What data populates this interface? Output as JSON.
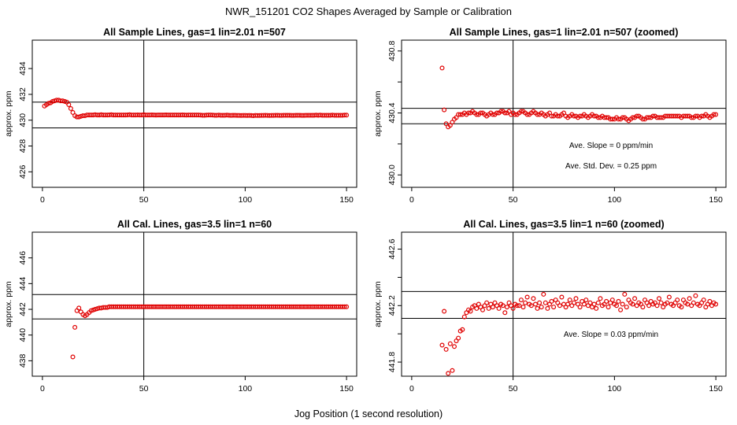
{
  "figure": {
    "title": "NWR_151201  CO2 Shapes Averaged by Sample or Calibration",
    "xlabel": "Jog Position (1 second resolution)"
  },
  "chart_data": [
    {
      "type": "scatter",
      "title": "All Sample Lines, gas=1 lin=2.01 n=507",
      "ylabel": "approx. ppm",
      "xlim": [
        -5,
        155
      ],
      "ylim": [
        424.8,
        436.2
      ],
      "xticks": [
        0,
        50,
        100,
        150
      ],
      "yticks": [
        426,
        428,
        430,
        432,
        434
      ],
      "vline": 50,
      "hlines": [
        431.4,
        429.4
      ],
      "annotations": [],
      "color": "#e00000",
      "x": [
        1,
        2,
        3,
        4,
        5,
        6,
        7,
        8,
        9,
        10,
        11,
        12,
        13,
        14,
        15,
        16,
        17,
        18,
        19,
        20,
        21,
        22,
        23,
        24,
        25,
        26,
        27,
        28,
        29,
        30,
        31,
        32,
        33,
        34,
        35,
        36,
        37,
        38,
        39,
        40,
        41,
        42,
        43,
        44,
        45,
        46,
        47,
        48,
        49,
        50,
        51,
        52,
        53,
        54,
        55,
        56,
        57,
        58,
        59,
        60,
        61,
        62,
        63,
        64,
        65,
        66,
        67,
        68,
        69,
        70,
        71,
        72,
        73,
        74,
        75,
        76,
        77,
        78,
        79,
        80,
        81,
        82,
        83,
        84,
        85,
        86,
        87,
        88,
        89,
        90,
        91,
        92,
        93,
        94,
        95,
        96,
        97,
        98,
        99,
        100,
        101,
        102,
        103,
        104,
        105,
        106,
        107,
        108,
        109,
        110,
        111,
        112,
        113,
        114,
        115,
        116,
        117,
        118,
        119,
        120,
        121,
        122,
        123,
        124,
        125,
        126,
        127,
        128,
        129,
        130,
        131,
        132,
        133,
        134,
        135,
        136,
        137,
        138,
        139,
        140,
        141,
        142,
        143,
        144,
        145,
        146,
        147,
        148,
        149,
        150
      ],
      "y": [
        431.1,
        431.2,
        431.3,
        431.35,
        431.45,
        431.5,
        431.55,
        431.55,
        431.5,
        431.5,
        431.45,
        431.4,
        431.2,
        430.9,
        430.6,
        430.35,
        430.25,
        430.25,
        430.3,
        430.35,
        430.35,
        430.4,
        430.4,
        430.4,
        430.4,
        430.42,
        430.4,
        430.4,
        430.42,
        430.4,
        430.4,
        430.4,
        430.41,
        430.42,
        430.4,
        430.4,
        430.4,
        430.4,
        430.4,
        430.4,
        430.4,
        430.41,
        430.42,
        430.4,
        430.4,
        430.4,
        430.41,
        430.4,
        430.4,
        430.42,
        430.4,
        430.4,
        430.4,
        430.41,
        430.4,
        430.39,
        430.4,
        430.4,
        430.4,
        430.4,
        430.41,
        430.4,
        430.4,
        430.4,
        430.4,
        430.4,
        430.4,
        430.4,
        430.41,
        430.4,
        430.39,
        430.4,
        430.4,
        430.4,
        430.4,
        430.4,
        430.4,
        430.39,
        430.38,
        430.38,
        430.39,
        430.4,
        430.4,
        430.39,
        430.38,
        430.38,
        430.39,
        430.38,
        430.38,
        430.38,
        430.39,
        430.38,
        430.37,
        430.38,
        430.38,
        430.37,
        430.37,
        430.36,
        430.37,
        430.37,
        430.36,
        430.37,
        430.36,
        430.35,
        430.37,
        430.36,
        430.36,
        430.37,
        430.37,
        430.38,
        430.37,
        430.36,
        430.37,
        430.37,
        430.38,
        430.38,
        430.37,
        430.37,
        430.38,
        430.38,
        430.38,
        430.38,
        430.37,
        430.37,
        430.38,
        430.38,
        430.38,
        430.37,
        430.37,
        430.38,
        430.38,
        430.38,
        430.38,
        430.38,
        430.39,
        430.38,
        430.39,
        430.38,
        430.38,
        430.38,
        430.38,
        430.38,
        430.39,
        430.38,
        430.38,
        430.38,
        430.38,
        430.38,
        430.39,
        430.39
      ]
    },
    {
      "type": "scatter",
      "title": "All Sample Lines, gas=1 lin=2.01 n=507 (zoomed)",
      "ylabel": "approx. ppm",
      "xlim": [
        -5,
        155
      ],
      "ylim": [
        429.92,
        430.87
      ],
      "xticks": [
        0,
        50,
        100,
        150
      ],
      "yticks": [
        430.0,
        430.4,
        430.8
      ],
      "ytick_labels": [
        "430.0",
        "430.4",
        "430.8"
      ],
      "yticks_unlabeled": [
        430.2,
        430.6
      ],
      "vline": 50,
      "hlines": [
        430.43,
        430.33
      ],
      "annotations": [
        "Ave. Slope =  0  ppm/min",
        "Ave. Std. Dev. =  0.25  ppm"
      ],
      "color": "#e00000",
      "x": [
        15,
        16,
        17,
        18,
        19,
        20,
        21,
        22,
        23,
        24,
        25,
        26,
        27,
        28,
        29,
        30,
        31,
        32,
        33,
        34,
        35,
        36,
        37,
        38,
        39,
        40,
        41,
        42,
        43,
        44,
        45,
        46,
        47,
        48,
        49,
        50,
        51,
        52,
        53,
        54,
        55,
        56,
        57,
        58,
        59,
        60,
        61,
        62,
        63,
        64,
        65,
        66,
        67,
        68,
        69,
        70,
        71,
        72,
        73,
        74,
        75,
        76,
        77,
        78,
        79,
        80,
        81,
        82,
        83,
        84,
        85,
        86,
        87,
        88,
        89,
        90,
        91,
        92,
        93,
        94,
        95,
        96,
        97,
        98,
        99,
        100,
        101,
        102,
        103,
        104,
        105,
        106,
        107,
        108,
        109,
        110,
        111,
        112,
        113,
        114,
        115,
        116,
        117,
        118,
        119,
        120,
        121,
        122,
        123,
        124,
        125,
        126,
        127,
        128,
        129,
        130,
        131,
        132,
        133,
        134,
        135,
        136,
        137,
        138,
        139,
        140,
        141,
        142,
        143,
        144,
        145,
        146,
        147,
        148,
        149,
        150
      ],
      "y": [
        430.69,
        430.42,
        430.33,
        430.31,
        430.32,
        430.34,
        430.36,
        430.37,
        430.39,
        430.39,
        430.39,
        430.4,
        430.39,
        430.4,
        430.4,
        430.41,
        430.4,
        430.39,
        430.39,
        430.4,
        430.4,
        430.39,
        430.38,
        430.39,
        430.4,
        430.39,
        430.39,
        430.4,
        430.4,
        430.41,
        430.41,
        430.4,
        430.4,
        430.41,
        430.39,
        430.4,
        430.39,
        430.39,
        430.4,
        430.41,
        430.41,
        430.4,
        430.39,
        430.39,
        430.4,
        430.41,
        430.4,
        430.39,
        430.39,
        430.4,
        430.39,
        430.38,
        430.39,
        430.4,
        430.38,
        430.38,
        430.39,
        430.38,
        430.38,
        430.39,
        430.4,
        430.38,
        430.37,
        430.38,
        430.39,
        430.38,
        430.38,
        430.37,
        430.38,
        430.38,
        430.39,
        430.38,
        430.37,
        430.38,
        430.39,
        430.38,
        430.38,
        430.37,
        430.37,
        430.38,
        430.37,
        430.37,
        430.37,
        430.36,
        430.36,
        430.36,
        430.37,
        430.36,
        430.36,
        430.37,
        430.37,
        430.36,
        430.35,
        430.36,
        430.37,
        430.37,
        430.38,
        430.38,
        430.37,
        430.36,
        430.36,
        430.37,
        430.37,
        430.37,
        430.38,
        430.38,
        430.37,
        430.37,
        430.37,
        430.37,
        430.38,
        430.38,
        430.38,
        430.38,
        430.38,
        430.38,
        430.38,
        430.38,
        430.37,
        430.38,
        430.38,
        430.38,
        430.38,
        430.37,
        430.37,
        430.38,
        430.38,
        430.37,
        430.38,
        430.38,
        430.39,
        430.38,
        430.37,
        430.38,
        430.39,
        430.39
      ]
    },
    {
      "type": "scatter",
      "title": "All Cal. Lines, gas=3.5 lin=1 n=60",
      "ylabel": "approx. ppm",
      "xlim": [
        -5,
        155
      ],
      "ylim": [
        436.8,
        448.0
      ],
      "xticks": [
        0,
        50,
        100,
        150
      ],
      "yticks": [
        438,
        440,
        442,
        444,
        446
      ],
      "vline": 50,
      "hlines": [
        443.15,
        441.25
      ],
      "annotations": [],
      "color": "#e00000",
      "x": [
        15,
        16,
        17,
        18,
        19,
        20,
        21,
        22,
        23,
        24,
        25,
        26,
        27,
        28,
        29,
        30,
        31,
        32,
        33,
        34,
        35,
        36,
        37,
        38,
        39,
        40,
        41,
        42,
        43,
        44,
        45,
        46,
        47,
        48,
        49,
        50,
        51,
        52,
        53,
        54,
        55,
        56,
        57,
        58,
        59,
        60,
        61,
        62,
        63,
        64,
        65,
        66,
        67,
        68,
        69,
        70,
        71,
        72,
        73,
        74,
        75,
        76,
        77,
        78,
        79,
        80,
        81,
        82,
        83,
        84,
        85,
        86,
        87,
        88,
        89,
        90,
        91,
        92,
        93,
        94,
        95,
        96,
        97,
        98,
        99,
        100,
        101,
        102,
        103,
        104,
        105,
        106,
        107,
        108,
        109,
        110,
        111,
        112,
        113,
        114,
        115,
        116,
        117,
        118,
        119,
        120,
        121,
        122,
        123,
        124,
        125,
        126,
        127,
        128,
        129,
        130,
        131,
        132,
        133,
        134,
        135,
        136,
        137,
        138,
        139,
        140,
        141,
        142,
        143,
        144,
        145,
        146,
        147,
        148,
        149,
        150
      ],
      "y": [
        438.3,
        440.6,
        441.9,
        442.1,
        441.8,
        441.6,
        441.5,
        441.6,
        441.75,
        441.9,
        441.95,
        442.0,
        442.05,
        442.1,
        442.1,
        442.15,
        442.15,
        442.15,
        442.2,
        442.2,
        442.2,
        442.2,
        442.2,
        442.2,
        442.2,
        442.2,
        442.2,
        442.2,
        442.2,
        442.2,
        442.2,
        442.2,
        442.2,
        442.2,
        442.2,
        442.2,
        442.2,
        442.2,
        442.2,
        442.2,
        442.2,
        442.2,
        442.2,
        442.2,
        442.2,
        442.2,
        442.2,
        442.2,
        442.2,
        442.2,
        442.2,
        442.2,
        442.2,
        442.2,
        442.2,
        442.2,
        442.2,
        442.2,
        442.2,
        442.2,
        442.2,
        442.2,
        442.2,
        442.2,
        442.2,
        442.2,
        442.2,
        442.2,
        442.2,
        442.2,
        442.2,
        442.2,
        442.2,
        442.2,
        442.2,
        442.2,
        442.2,
        442.2,
        442.2,
        442.2,
        442.2,
        442.2,
        442.2,
        442.2,
        442.2,
        442.2,
        442.2,
        442.2,
        442.2,
        442.2,
        442.2,
        442.2,
        442.2,
        442.2,
        442.2,
        442.2,
        442.2,
        442.2,
        442.2,
        442.2,
        442.2,
        442.2,
        442.2,
        442.2,
        442.2,
        442.2,
        442.2,
        442.2,
        442.2,
        442.2,
        442.2,
        442.2,
        442.2,
        442.2,
        442.2,
        442.2,
        442.2,
        442.2,
        442.2,
        442.2,
        442.2,
        442.2,
        442.2,
        442.2,
        442.2,
        442.2,
        442.2,
        442.2,
        442.2,
        442.2,
        442.2,
        442.2,
        442.2,
        442.2,
        442.2,
        442.2
      ]
    },
    {
      "type": "scatter",
      "title": "All Cal. Lines, gas=3.5 lin=1 n=60 (zoomed)",
      "ylabel": "approx. ppm",
      "xlim": [
        -5,
        155
      ],
      "ylim": [
        441.7,
        442.72
      ],
      "xticks": [
        0,
        50,
        100,
        150
      ],
      "yticks": [
        441.8,
        442.2,
        442.6
      ],
      "ytick_labels": [
        "441.8",
        "442.2",
        "442.6"
      ],
      "yticks_unlabeled": [
        442.0,
        442.4
      ],
      "vline": 50,
      "hlines": [
        442.3,
        442.11
      ],
      "annotations": [
        "Ave. Slope =  0.03  ppm/min"
      ],
      "color": "#e00000",
      "x": [
        15,
        16,
        17,
        18,
        19,
        20,
        21,
        22,
        23,
        24,
        25,
        26,
        27,
        28,
        29,
        30,
        31,
        32,
        33,
        34,
        35,
        36,
        37,
        38,
        39,
        40,
        41,
        42,
        43,
        44,
        45,
        46,
        47,
        48,
        49,
        50,
        51,
        52,
        53,
        54,
        55,
        56,
        57,
        58,
        59,
        60,
        61,
        62,
        63,
        64,
        65,
        66,
        67,
        68,
        69,
        70,
        71,
        72,
        73,
        74,
        75,
        76,
        77,
        78,
        79,
        80,
        81,
        82,
        83,
        84,
        85,
        86,
        87,
        88,
        89,
        90,
        91,
        92,
        93,
        94,
        95,
        96,
        97,
        98,
        99,
        100,
        101,
        102,
        103,
        104,
        105,
        106,
        107,
        108,
        109,
        110,
        111,
        112,
        113,
        114,
        115,
        116,
        117,
        118,
        119,
        120,
        121,
        122,
        123,
        124,
        125,
        126,
        127,
        128,
        129,
        130,
        131,
        132,
        133,
        134,
        135,
        136,
        137,
        138,
        139,
        140,
        141,
        142,
        143,
        144,
        145,
        146,
        147,
        148,
        149,
        150
      ],
      "y": [
        441.92,
        442.16,
        441.89,
        441.72,
        441.93,
        441.74,
        441.91,
        441.95,
        441.97,
        442.02,
        442.03,
        442.12,
        442.15,
        442.17,
        442.16,
        442.19,
        442.2,
        442.18,
        442.21,
        442.19,
        442.17,
        442.2,
        442.22,
        442.18,
        442.21,
        442.19,
        442.22,
        442.2,
        442.18,
        442.21,
        442.2,
        442.15,
        442.19,
        442.22,
        442.2,
        442.18,
        442.21,
        442.2,
        442.2,
        442.24,
        442.19,
        442.22,
        442.26,
        442.21,
        442.2,
        442.25,
        442.21,
        442.18,
        442.22,
        442.19,
        442.28,
        442.22,
        442.18,
        442.21,
        442.23,
        442.19,
        442.24,
        442.22,
        442.2,
        442.26,
        442.21,
        442.19,
        442.21,
        442.24,
        442.2,
        442.22,
        442.25,
        442.21,
        442.19,
        442.23,
        442.21,
        442.24,
        442.2,
        442.22,
        442.19,
        442.21,
        442.18,
        442.22,
        442.25,
        442.2,
        442.21,
        442.23,
        442.19,
        442.22,
        442.24,
        442.21,
        442.2,
        442.23,
        442.17,
        442.21,
        442.28,
        442.19,
        442.24,
        442.22,
        442.21,
        442.25,
        442.2,
        442.22,
        442.21,
        442.19,
        442.24,
        442.22,
        442.2,
        442.23,
        442.21,
        442.22,
        442.2,
        442.25,
        442.22,
        442.19,
        442.21,
        442.22,
        442.26,
        442.21,
        442.2,
        442.22,
        442.24,
        442.2,
        442.19,
        442.24,
        442.22,
        442.21,
        442.25,
        442.2,
        442.22,
        442.27,
        442.21,
        442.2,
        442.22,
        442.24,
        442.19,
        442.21,
        442.23,
        442.2,
        442.22,
        442.21
      ]
    }
  ]
}
